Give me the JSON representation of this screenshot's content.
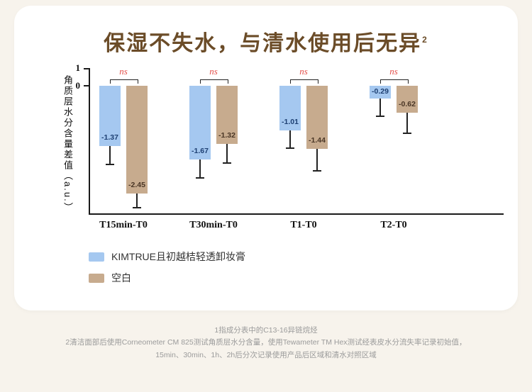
{
  "title": {
    "text": "保湿不失水，与清水使用后无异",
    "superscript": "2"
  },
  "chart_data": {
    "type": "bar",
    "categories": [
      "T15min-T0",
      "T30min-T0",
      "T1-T0",
      "T2-T0"
    ],
    "series": [
      {
        "name": "KIMTRUE且初越桔轻透卸妆膏",
        "color": "#a5c8f0",
        "label_color": "#1d3f72",
        "values": [
          -1.37,
          -1.67,
          -1.01,
          -0.29
        ],
        "errors": [
          0.4,
          0.4,
          0.38,
          0.38
        ]
      },
      {
        "name": "空白",
        "color": "#c7ab8e",
        "label_color": "#4a3626",
        "values": [
          -2.45,
          -1.32,
          -1.44,
          -0.62
        ],
        "errors": [
          0.3,
          0.42,
          0.48,
          0.45
        ]
      }
    ],
    "ylabel": "角质层水分含量差值（a.u.）",
    "yticks": [
      "1",
      "0"
    ],
    "ylim": [
      -3.2,
      1
    ],
    "significance": {
      "labels": [
        "ns",
        "ns",
        "ns",
        "ns"
      ],
      "color": "#e4504b"
    },
    "axis_color": "#1a1a1a",
    "grid": false,
    "legend_position": "bottom-left"
  },
  "footnotes": [
    "1指成分表中的C13-16异链烷烃",
    "2清洁面部后使用Corneometer CM 825测试角质层水分含量，使用Tewameter TM Hex测试经表皮水分流失率记录初始值，",
    "15min、30min、1h、2h后分次记录使用产品后区域和清水对照区域"
  ]
}
